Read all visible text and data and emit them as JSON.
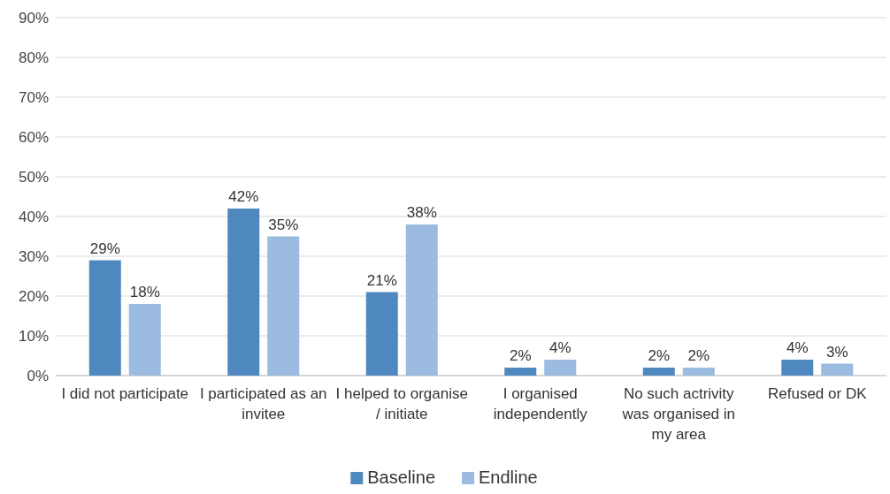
{
  "chart_data": {
    "type": "bar",
    "categories": [
      "I did not participate",
      "I participated as an invitee",
      "I helped to organise / initiate",
      "I organised independently",
      "No such actrivity was organised in my area",
      "Refused or DK"
    ],
    "series": [
      {
        "name": "Baseline",
        "color": "#4f88bf",
        "values": [
          29,
          42,
          21,
          2,
          2,
          4
        ],
        "value_labels": [
          "29%",
          "42%",
          "21%",
          "2%",
          "2%",
          "4%"
        ]
      },
      {
        "name": "Endline",
        "color": "#9bbbe0",
        "values": [
          18,
          35,
          38,
          4,
          2,
          3
        ],
        "value_labels": [
          "18%",
          "35%",
          "38%",
          "4%",
          "2%",
          "3%"
        ]
      }
    ],
    "ylim": [
      0,
      90
    ],
    "yticks": [
      {
        "value": 0,
        "label": "0%"
      },
      {
        "value": 10,
        "label": "10%"
      },
      {
        "value": 20,
        "label": "20%"
      },
      {
        "value": 30,
        "label": "30%"
      },
      {
        "value": 40,
        "label": "40%"
      },
      {
        "value": 50,
        "label": "50%"
      },
      {
        "value": 60,
        "label": "60%"
      },
      {
        "value": 70,
        "label": "70%"
      },
      {
        "value": 80,
        "label": "80%"
      },
      {
        "value": 90,
        "label": "90%"
      }
    ],
    "grid": "y",
    "legend": "bottom"
  }
}
